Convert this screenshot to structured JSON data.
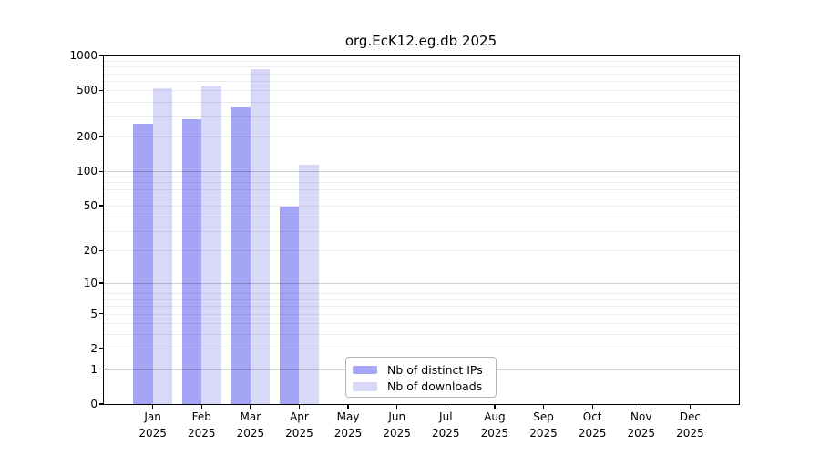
{
  "chart_data": {
    "type": "bar",
    "title": "org.EcK12.eg.db 2025",
    "year": "2025",
    "categories": [
      "Jan",
      "Feb",
      "Mar",
      "Apr",
      "May",
      "Jun",
      "Jul",
      "Aug",
      "Sep",
      "Oct",
      "Nov",
      "Dec"
    ],
    "series": [
      {
        "name": "Nb of distinct IPs",
        "color": "#a5a5f5",
        "values": [
          260,
          280,
          356,
          49,
          0,
          0,
          0,
          0,
          0,
          0,
          0,
          0
        ]
      },
      {
        "name": "Nb of downloads",
        "color": "#d8d8f8",
        "values": [
          524,
          554,
          757,
          114,
          0,
          0,
          0,
          0,
          0,
          0,
          0,
          0
        ]
      }
    ],
    "xlabel": "",
    "ylabel": "",
    "yscale": "log10(1+x)",
    "ylim": [
      0,
      1000
    ],
    "yticks": [
      1000,
      500,
      200,
      100,
      50,
      20,
      10,
      5,
      2,
      1,
      0
    ],
    "grid": {
      "on": true,
      "minor_values": [
        2,
        3,
        4,
        5,
        6,
        7,
        8,
        9,
        20,
        30,
        40,
        50,
        60,
        70,
        80,
        90,
        200,
        300,
        400,
        500,
        600,
        700,
        800,
        900
      ],
      "major_values": [
        1,
        10,
        100,
        1000
      ],
      "minor_color": "rgba(0,0,0,0.075)",
      "major_color": "rgba(0,0,0,0.19)"
    },
    "legend": {
      "position": "bottom-center-inside"
    },
    "colors": {
      "axis": "#000000",
      "background": "#ffffff",
      "legend_border": "#b3b3b3"
    }
  }
}
